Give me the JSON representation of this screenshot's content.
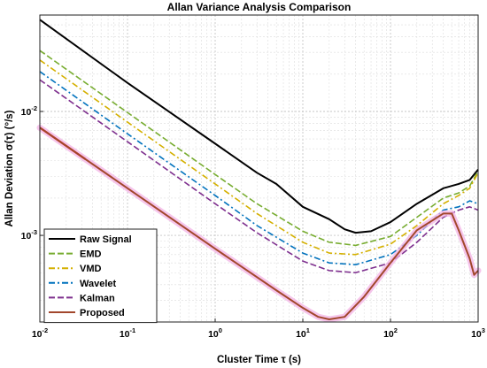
{
  "chart_data": {
    "type": "line",
    "title": "Allan Variance Analysis Comparison",
    "xlabel": "Cluster Time τ (s)",
    "ylabel": "Allan Deviation σ(τ) (°/s)",
    "xscale": "log",
    "yscale": "log",
    "xlim": [
      0.01,
      1000
    ],
    "ylim": [
      0.0002,
      0.06
    ],
    "grid": true,
    "legend_position": "bottom-left",
    "x_ticks": [
      {
        "base": "10",
        "exp": "-2"
      },
      {
        "base": "10",
        "exp": "-1"
      },
      {
        "base": "10",
        "exp": "0"
      },
      {
        "base": "10",
        "exp": "1"
      },
      {
        "base": "10",
        "exp": "2"
      },
      {
        "base": "10",
        "exp": "3"
      }
    ],
    "y_ticks": [
      {
        "base": "10",
        "exp": "-3",
        "value": 0.001
      },
      {
        "base": "10",
        "exp": "-2",
        "value": 0.01
      }
    ],
    "series": [
      {
        "name": "Raw Signal",
        "color": "#000000",
        "dash": "solid",
        "x": [
          0.01,
          0.1,
          1,
          3,
          5,
          10,
          20,
          30,
          40,
          60,
          100,
          200,
          400,
          600,
          800,
          1000
        ],
        "y": [
          0.055,
          0.017,
          0.0055,
          0.0032,
          0.0026,
          0.0017,
          0.00135,
          0.00112,
          0.00105,
          0.00108,
          0.00128,
          0.0018,
          0.0024,
          0.0026,
          0.0028,
          0.0034
        ]
      },
      {
        "name": "EMD",
        "color": "#77ac30",
        "dash": "dashed",
        "x": [
          0.01,
          0.1,
          1,
          3,
          10,
          20,
          40,
          100,
          200,
          400,
          600,
          800,
          1000
        ],
        "y": [
          0.031,
          0.0098,
          0.0031,
          0.0018,
          0.00108,
          0.00088,
          0.00083,
          0.00098,
          0.0014,
          0.002,
          0.0022,
          0.0025,
          0.0033
        ]
      },
      {
        "name": "VMD",
        "color": "#d4b000",
        "dash": "dashdot",
        "x": [
          0.01,
          0.1,
          1,
          3,
          10,
          20,
          40,
          100,
          200,
          400,
          600,
          800,
          1000
        ],
        "y": [
          0.026,
          0.0082,
          0.0026,
          0.0015,
          0.00088,
          0.00072,
          0.0007,
          0.00085,
          0.0012,
          0.0018,
          0.0021,
          0.0024,
          0.0032
        ]
      },
      {
        "name": "Wavelet",
        "color": "#0072bd",
        "dash": "dashdot",
        "x": [
          0.01,
          0.1,
          1,
          3,
          10,
          20,
          40,
          100,
          200,
          400,
          600,
          800,
          1000
        ],
        "y": [
          0.021,
          0.0066,
          0.0021,
          0.0012,
          0.00072,
          0.0006,
          0.00058,
          0.0007,
          0.001,
          0.0016,
          0.0017,
          0.0019,
          0.0018
        ]
      },
      {
        "name": "Kalman",
        "color": "#7e2f8e",
        "dash": "dashed",
        "x": [
          0.01,
          0.1,
          1,
          3,
          10,
          20,
          40,
          100,
          200,
          400,
          600,
          800,
          1000
        ],
        "y": [
          0.018,
          0.0057,
          0.0018,
          0.00105,
          0.00062,
          0.00052,
          0.0005,
          0.0006,
          0.00088,
          0.0014,
          0.0016,
          0.0017,
          0.0016
        ]
      },
      {
        "name": "Proposed",
        "color": "#a2472c",
        "dash": "solid",
        "x": [
          0.01,
          0.1,
          1,
          3,
          5,
          10,
          15,
          20,
          30,
          50,
          100,
          200,
          400,
          500,
          600,
          800,
          900,
          1000
        ],
        "y": [
          0.0074,
          0.0024,
          0.00078,
          0.00046,
          0.00036,
          0.00026,
          0.00022,
          0.00021,
          0.00022,
          0.00032,
          0.0006,
          0.0011,
          0.0015,
          0.0015,
          0.0011,
          0.00065,
          0.00048,
          0.00052
        ]
      }
    ]
  }
}
